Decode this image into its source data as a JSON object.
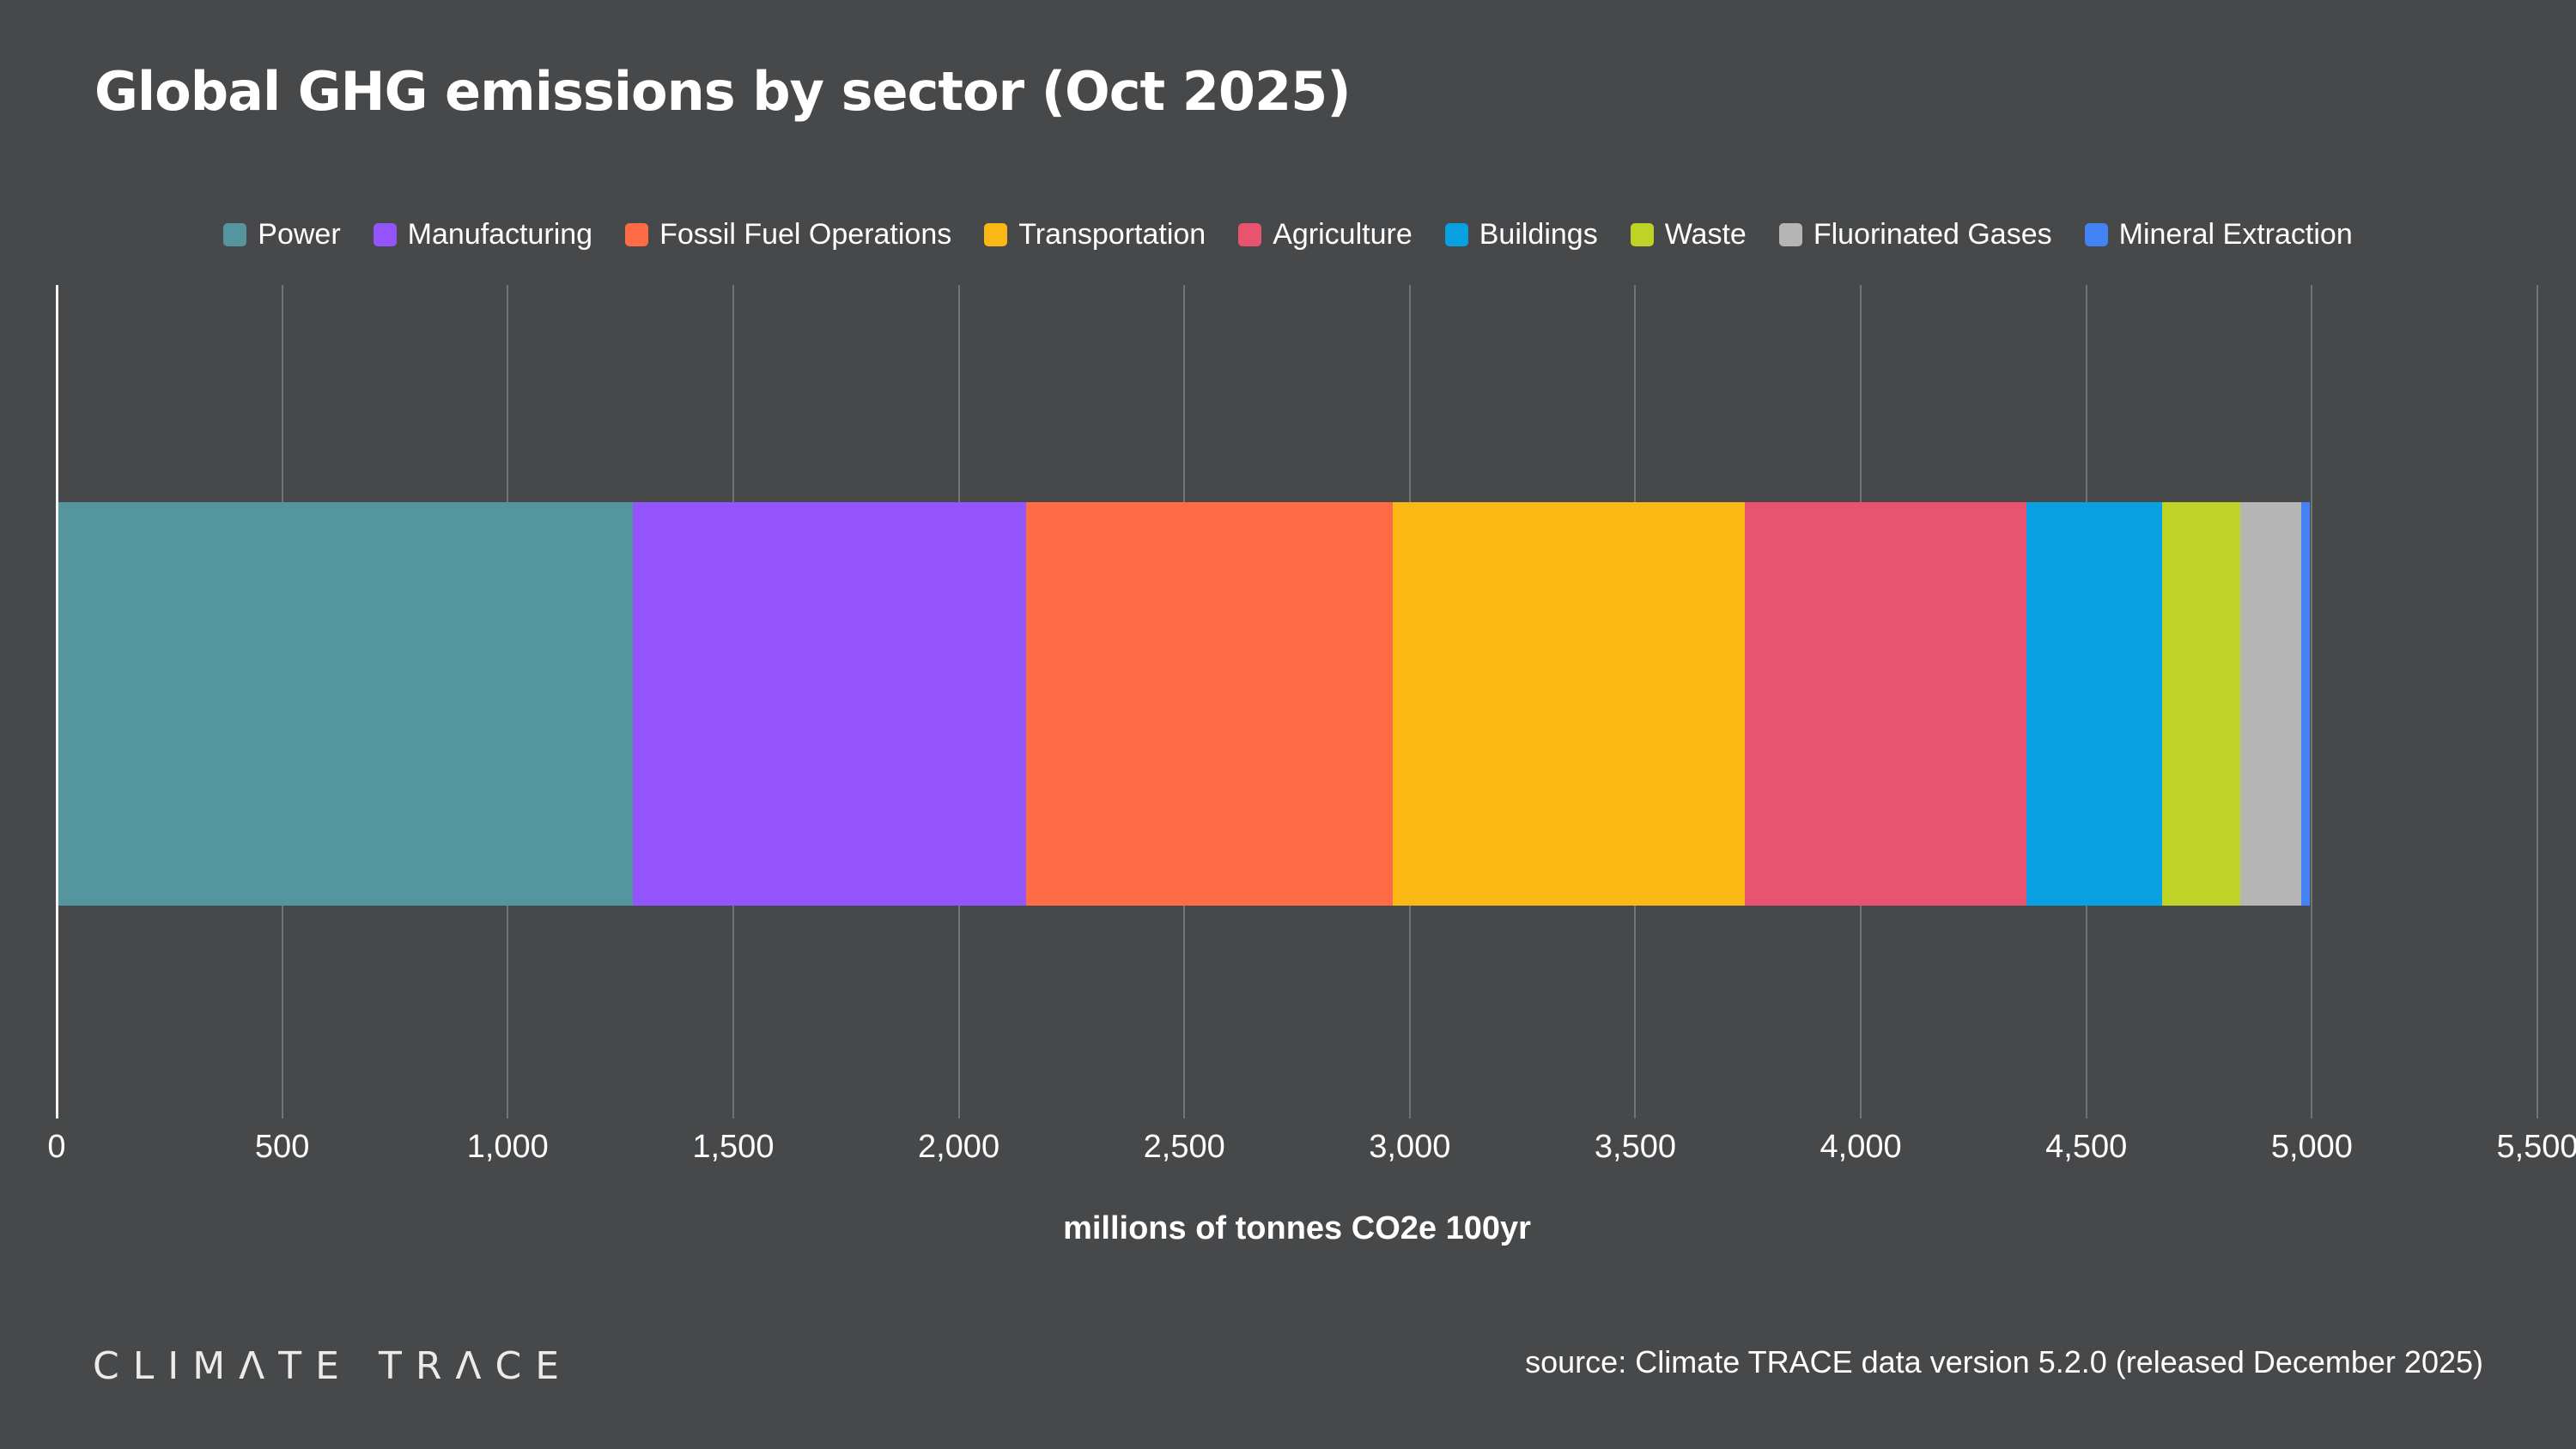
{
  "title": "Global GHG emissions by sector (Oct 2025)",
  "colors": {
    "background": "#46484a",
    "text": "#ffffff",
    "gridline": "rgba(255,255,255,0.24)",
    "zero_line": "#f4f4f4"
  },
  "footer": {
    "brand_wordmark": "CLIMΛTE TRΛCE",
    "source": "source: Climate TRACE data version 5.2.0 (released December 2025)"
  },
  "chart_data": {
    "type": "bar",
    "orientation": "horizontal-stacked",
    "title": "Global GHG emissions by sector (Oct 2025)",
    "xlabel": "millions of tonnes CO2e 100yr",
    "xlim": [
      0,
      5500
    ],
    "x_ticks": [
      0,
      500,
      1000,
      1500,
      2000,
      2500,
      3000,
      3500,
      4000,
      4500,
      5000,
      5500
    ],
    "x_tick_labels": [
      "0",
      "500",
      "1,000",
      "1,500",
      "2,000",
      "2,500",
      "3,000",
      "3,500",
      "4,000",
      "4,500",
      "5,000",
      "5,500"
    ],
    "grid": true,
    "legend_position": "top",
    "series": [
      {
        "name": "Power",
        "value": 1277,
        "color": "#55969e"
      },
      {
        "name": "Manufacturing",
        "value": 872,
        "color": "#9355fb"
      },
      {
        "name": "Fossil Fuel Operations",
        "value": 814,
        "color": "#ff6b44"
      },
      {
        "name": "Transportation",
        "value": 779,
        "color": "#fab815"
      },
      {
        "name": "Agriculture",
        "value": 625,
        "color": "#e8536f"
      },
      {
        "name": "Buildings",
        "value": 301,
        "color": "#09a0e2"
      },
      {
        "name": "Waste",
        "value": 174,
        "color": "#bfd226"
      },
      {
        "name": "Fluorinated Gases",
        "value": 135,
        "color": "#b5b5b5"
      },
      {
        "name": "Mineral Extraction",
        "value": 19,
        "color": "#4483f5"
      }
    ],
    "total_approx": 4996
  }
}
